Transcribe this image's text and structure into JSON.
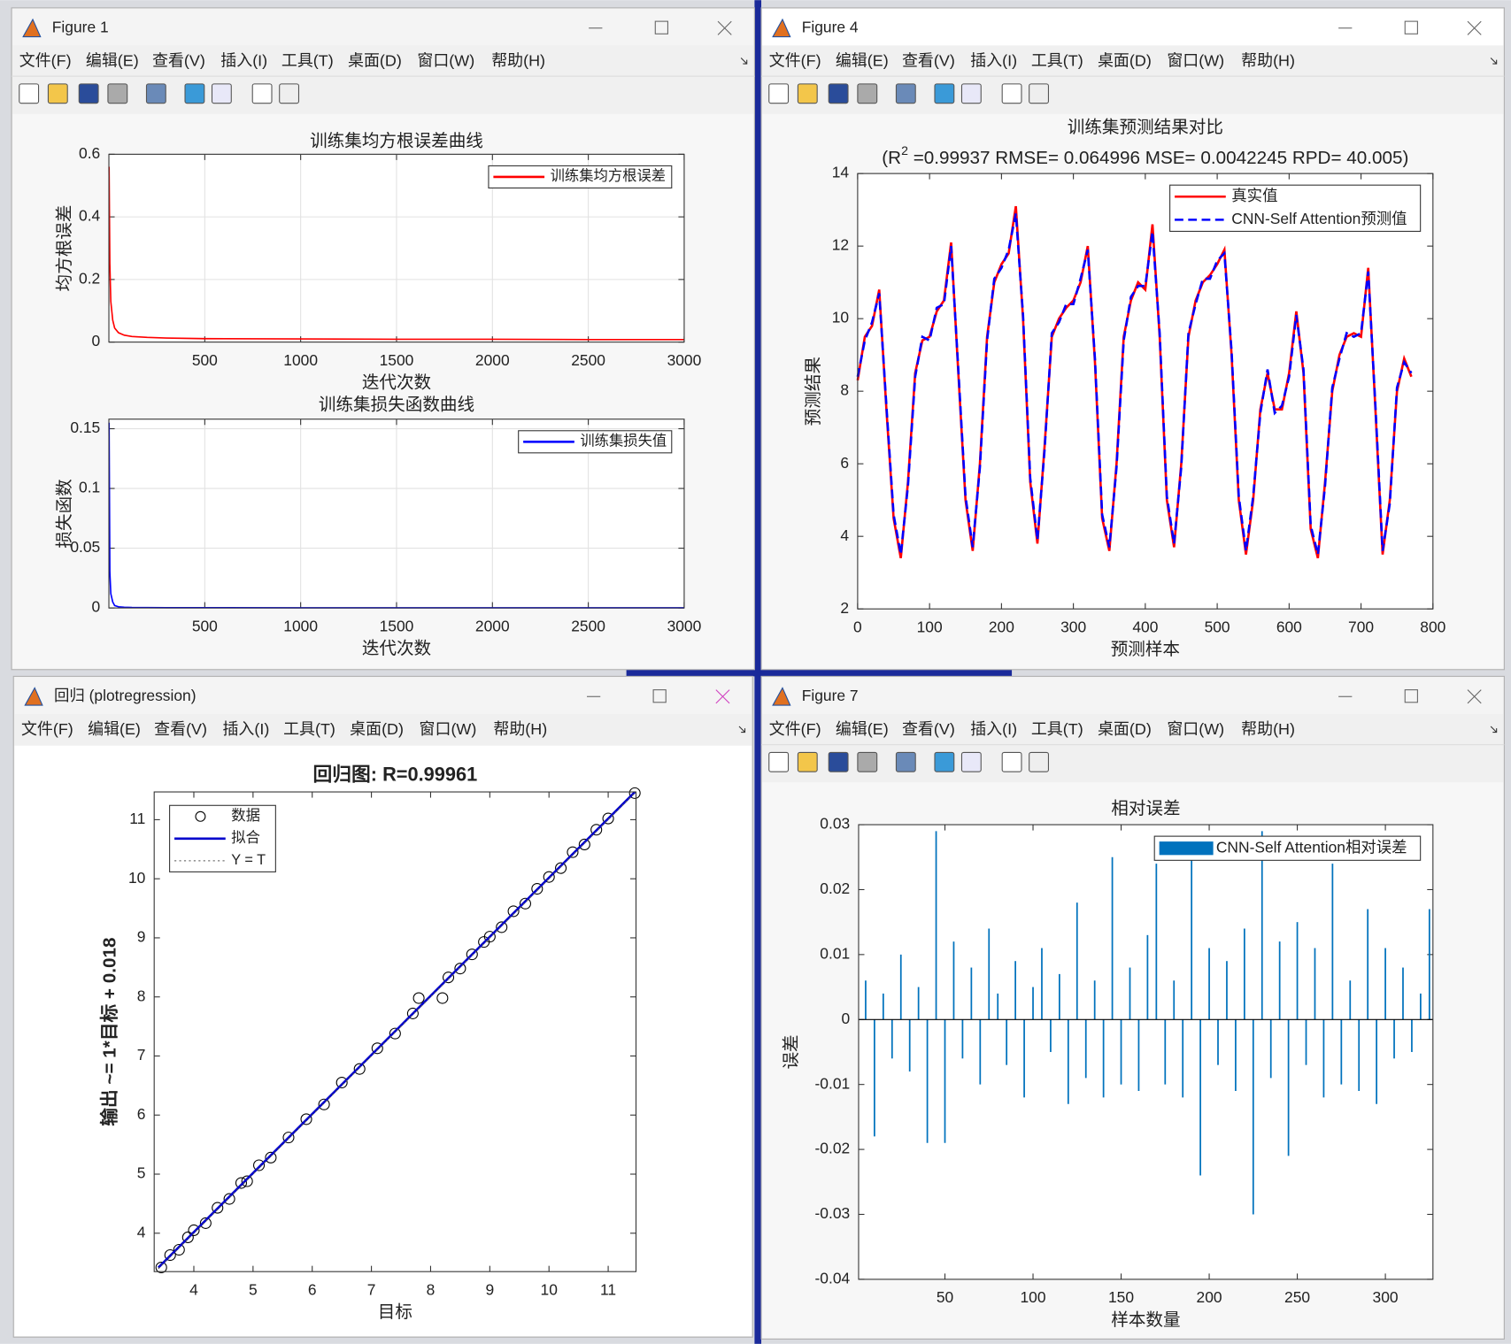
{
  "windows": [
    {
      "title": "Figure 1"
    },
    {
      "title": "Figure 4"
    },
    {
      "title": "回归 (plotregression)"
    },
    {
      "title": "Figure 7"
    }
  ],
  "menu": [
    "文件(F)",
    "编辑(E)",
    "查看(V)",
    "插入(I)",
    "工具(T)",
    "桌面(D)",
    "窗口(W)",
    "帮助(H)"
  ],
  "chart_data": [
    {
      "type": "line",
      "title": "训练集均方根误差曲线",
      "xlabel": "迭代次数",
      "ylabel": "均方根误差",
      "x": [
        1,
        5,
        10,
        20,
        30,
        50,
        80,
        120,
        200,
        300,
        500,
        1000,
        1500,
        2000,
        2500,
        3000
      ],
      "series": [
        {
          "name": "训练集均方根误差",
          "color": "#ff0000",
          "style": "solid",
          "values": [
            0.56,
            0.25,
            0.13,
            0.07,
            0.045,
            0.03,
            0.022,
            0.018,
            0.015,
            0.013,
            0.011,
            0.01,
            0.009,
            0.009,
            0.008,
            0.008
          ]
        }
      ],
      "xlim": [
        0,
        3000
      ],
      "xticks": [
        500,
        1000,
        1500,
        2000,
        2500,
        3000
      ],
      "ylim": [
        0,
        0.6
      ],
      "yticks": [
        0,
        0.2,
        0.4,
        0.6
      ],
      "grid": true,
      "legend": "northeast"
    },
    {
      "type": "line",
      "title": "训练集损失函数曲线",
      "xlabel": "迭代次数",
      "ylabel": "损失函数",
      "x": [
        1,
        5,
        10,
        20,
        30,
        50,
        80,
        120,
        200,
        300,
        500,
        1000,
        1500,
        2000,
        2500,
        3000
      ],
      "series": [
        {
          "name": "训练集损失值",
          "color": "#0000ff",
          "style": "solid",
          "values": [
            0.155,
            0.03,
            0.012,
            0.005,
            0.002,
            0.001,
            0.0006,
            0.0004,
            0.0003,
            0.0002,
            0.0002,
            0.0001,
            0.0001,
            0.0001,
            0.0001,
            0.0001
          ]
        }
      ],
      "xlim": [
        0,
        3000
      ],
      "xticks": [
        500,
        1000,
        1500,
        2000,
        2500,
        3000
      ],
      "ylim": [
        0,
        0.158
      ],
      "yticks": [
        0,
        0.05,
        0.1,
        0.15
      ],
      "grid": true,
      "legend": "northeast"
    },
    {
      "type": "line",
      "title": "训练集预测结果对比",
      "subtitle_pre": "(R",
      "subtitle_sup": "2",
      "subtitle_rest": " =0.99937 RMSE= 0.064996 MSE= 0.0042245 RPD= 40.005)",
      "xlabel": "预测样本",
      "ylabel": "预测结果",
      "x": [
        0,
        10,
        20,
        30,
        40,
        50,
        60,
        70,
        80,
        90,
        100,
        110,
        120,
        130,
        140,
        150,
        160,
        170,
        180,
        190,
        200,
        210,
        220,
        230,
        240,
        250,
        260,
        270,
        280,
        290,
        300,
        310,
        320,
        330,
        340,
        350,
        360,
        370,
        380,
        390,
        400,
        410,
        420,
        430,
        440,
        450,
        460,
        470,
        480,
        490,
        500,
        510,
        520,
        530,
        540,
        550,
        560,
        570,
        580,
        590,
        600,
        610,
        620,
        630,
        640,
        650,
        660,
        670,
        680,
        690,
        700,
        710,
        720,
        730,
        740,
        750,
        760,
        770
      ],
      "series": [
        {
          "name": "真实值",
          "color": "#ff0000",
          "style": "solid",
          "values": [
            8.3,
            9.5,
            9.8,
            10.8,
            7.5,
            4.5,
            3.4,
            5.5,
            8.5,
            9.4,
            9.5,
            10.2,
            10.5,
            12.1,
            8.5,
            5.0,
            3.6,
            6.0,
            9.5,
            11.0,
            11.5,
            11.8,
            13.1,
            10.0,
            5.5,
            3.8,
            6.5,
            9.5,
            10.0,
            10.3,
            10.5,
            11.0,
            12.0,
            8.8,
            4.5,
            3.6,
            6.0,
            9.5,
            10.5,
            11.0,
            10.8,
            12.6,
            9.5,
            5.0,
            3.7,
            6.0,
            9.5,
            10.5,
            11.0,
            11.2,
            11.5,
            11.9,
            9.0,
            5.0,
            3.5,
            5.0,
            7.5,
            8.5,
            7.5,
            7.5,
            8.5,
            10.2,
            8.5,
            4.2,
            3.4,
            5.5,
            8.0,
            9.0,
            9.5,
            9.6,
            9.5,
            11.4,
            7.5,
            3.5,
            5.0,
            8.0,
            8.9,
            8.4
          ]
        },
        {
          "name": "CNN-Self Attention预测值",
          "color": "#0000ff",
          "style": "dashed",
          "values": [
            8.4,
            9.4,
            9.9,
            10.7,
            7.6,
            4.6,
            3.5,
            5.4,
            8.4,
            9.5,
            9.4,
            10.3,
            10.4,
            12.0,
            8.6,
            5.1,
            3.7,
            5.9,
            9.4,
            11.1,
            11.4,
            11.9,
            12.9,
            10.1,
            5.6,
            3.9,
            6.4,
            9.6,
            9.9,
            10.4,
            10.4,
            11.1,
            11.9,
            8.9,
            4.6,
            3.7,
            5.9,
            9.4,
            10.6,
            10.9,
            10.9,
            12.4,
            9.6,
            5.1,
            3.8,
            5.9,
            9.6,
            10.4,
            11.1,
            11.1,
            11.6,
            11.8,
            9.1,
            5.1,
            3.6,
            5.1,
            7.4,
            8.6,
            7.4,
            7.6,
            8.4,
            10.1,
            8.6,
            4.3,
            3.5,
            5.4,
            8.1,
            8.9,
            9.6,
            9.5,
            9.6,
            11.3,
            7.6,
            3.6,
            4.9,
            8.1,
            8.8,
            8.5
          ]
        }
      ],
      "xlim": [
        0,
        800
      ],
      "xticks": [
        0,
        100,
        200,
        300,
        400,
        500,
        600,
        700,
        800
      ],
      "ylim": [
        2,
        14
      ],
      "yticks": [
        2,
        4,
        6,
        8,
        10,
        12,
        14
      ],
      "grid": false,
      "legend": "northeast"
    },
    {
      "type": "scatter",
      "title": "回归图: R=0.99961",
      "xlabel": "目标",
      "ylabel": "输出 ~= 1*目标 + 0.018",
      "series": [
        {
          "name": "数据",
          "color": "#000000",
          "marker": "o",
          "x": [
            3.45,
            3.6,
            3.75,
            3.9,
            4.0,
            4.2,
            4.4,
            4.6,
            4.8,
            4.9,
            5.1,
            5.3,
            5.6,
            5.9,
            6.2,
            6.5,
            6.8,
            7.1,
            7.4,
            7.7,
            7.8,
            8.2,
            8.3,
            8.5,
            8.7,
            8.9,
            9.0,
            9.2,
            9.4,
            9.6,
            9.8,
            10.0,
            10.2,
            10.4,
            10.6,
            10.8,
            11.0,
            11.45
          ],
          "values": [
            3.42,
            3.63,
            3.72,
            3.93,
            4.05,
            4.17,
            4.43,
            4.58,
            4.85,
            4.88,
            5.15,
            5.28,
            5.62,
            5.93,
            6.18,
            6.55,
            6.78,
            7.13,
            7.38,
            7.72,
            7.98,
            7.98,
            8.33,
            8.48,
            8.72,
            8.93,
            9.02,
            9.18,
            9.45,
            9.58,
            9.83,
            10.03,
            10.18,
            10.45,
            10.58,
            10.83,
            11.02,
            11.45
          ]
        },
        {
          "name": "拟合",
          "color": "#0000cc",
          "style": "solid",
          "x": [
            3.4,
            11.45
          ],
          "values": [
            3.418,
            11.468
          ]
        },
        {
          "name": "Y = T",
          "color": "#555555",
          "style": "dotted",
          "x": [
            3.4,
            11.45
          ],
          "values": [
            3.4,
            11.45
          ]
        }
      ],
      "xlim": [
        3.33,
        11.47
      ],
      "xticks": [
        4,
        5,
        6,
        7,
        8,
        9,
        10,
        11
      ],
      "ylim": [
        3.35,
        11.47
      ],
      "yticks": [
        4,
        5,
        6,
        7,
        8,
        9,
        10,
        11
      ],
      "grid": false,
      "legend": "northwest"
    },
    {
      "type": "bar",
      "title": "相对误差",
      "xlabel": "样本数量",
      "ylabel": "误差",
      "x": [
        5,
        10,
        15,
        20,
        25,
        30,
        35,
        40,
        45,
        50,
        55,
        60,
        65,
        70,
        75,
        80,
        85,
        90,
        95,
        100,
        105,
        110,
        115,
        120,
        125,
        130,
        135,
        140,
        145,
        150,
        155,
        160,
        165,
        170,
        175,
        180,
        185,
        190,
        195,
        200,
        205,
        210,
        215,
        220,
        225,
        230,
        235,
        240,
        245,
        250,
        255,
        260,
        265,
        270,
        275,
        280,
        285,
        290,
        295,
        300,
        305,
        310,
        315,
        320,
        325
      ],
      "series": [
        {
          "name": "CNN-Self Attention相对误差",
          "color": "#0072bd",
          "values": [
            0.006,
            -0.018,
            0.004,
            -0.006,
            0.01,
            -0.008,
            0.005,
            -0.019,
            0.029,
            -0.019,
            0.012,
            -0.006,
            0.008,
            -0.01,
            0.014,
            0.004,
            -0.007,
            0.009,
            -0.012,
            0.005,
            0.011,
            -0.005,
            0.007,
            -0.013,
            0.018,
            -0.009,
            0.006,
            -0.012,
            0.025,
            -0.01,
            0.008,
            -0.011,
            0.013,
            0.024,
            -0.01,
            0.006,
            -0.012,
            0.025,
            -0.024,
            0.011,
            -0.007,
            0.009,
            -0.011,
            0.014,
            -0.03,
            0.029,
            -0.009,
            0.012,
            -0.021,
            0.015,
            -0.007,
            0.011,
            -0.012,
            0.024,
            -0.01,
            0.006,
            -0.011,
            0.017,
            -0.013,
            0.011,
            -0.006,
            0.008,
            -0.005,
            0.004,
            0.017
          ]
        }
      ],
      "xlim": [
        1,
        327
      ],
      "xticks": [
        50,
        100,
        150,
        200,
        250,
        300
      ],
      "ylim": [
        -0.04,
        0.03
      ],
      "yticks": [
        -0.04,
        -0.03,
        -0.02,
        -0.01,
        0,
        0.01,
        0.02,
        0.03
      ],
      "grid": false,
      "legend": "northeast"
    }
  ]
}
